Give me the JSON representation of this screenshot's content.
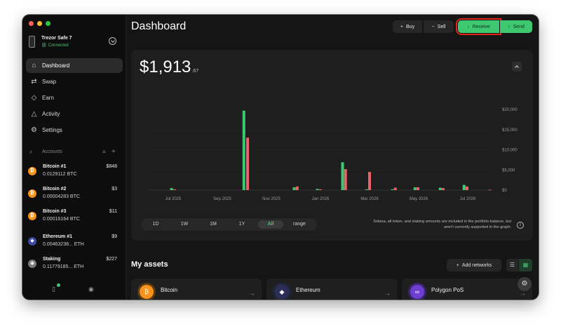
{
  "device": {
    "name": "Trezor Safe 7",
    "status": "Connected"
  },
  "nav": [
    {
      "label": "Dashboard",
      "icon": "home-icon",
      "glyph": "⌂",
      "active": true
    },
    {
      "label": "Swap",
      "icon": "swap-icon",
      "glyph": "⇄",
      "active": false
    },
    {
      "label": "Earn",
      "icon": "earn-icon",
      "glyph": "◇",
      "active": false
    },
    {
      "label": "Activity",
      "icon": "bell-icon",
      "glyph": "△",
      "active": false
    },
    {
      "label": "Settings",
      "icon": "gear-icon",
      "glyph": "⚙",
      "active": false
    }
  ],
  "accounts_header": {
    "label": "Accounts"
  },
  "accounts": [
    {
      "name": "Bitcoin #1",
      "balance": "0.0129112 BTC",
      "fiat": "$848",
      "coin": "btc",
      "glyph": "₿"
    },
    {
      "name": "Bitcoin #2",
      "balance": "0.00004283 BTC",
      "fiat": "$3",
      "coin": "btc",
      "glyph": "₿"
    },
    {
      "name": "Bitcoin #3",
      "balance": "0.00016164 BTC",
      "fiat": "$11",
      "coin": "btc",
      "glyph": "₿"
    },
    {
      "name": "Ethereum #1",
      "balance": "0.00463238... ETH",
      "fiat": "$9",
      "coin": "eth",
      "glyph": "◆"
    },
    {
      "name": "Staking",
      "balance": "0.11779185... ETH",
      "fiat": "$227",
      "coin": "stake",
      "glyph": "◉"
    }
  ],
  "header": {
    "title": "Dashboard",
    "buy": "Buy",
    "sell": "Sell",
    "receive": "Receive",
    "send": "Send"
  },
  "portfolio": {
    "balance_main": "$1,913",
    "balance_cents": ".67"
  },
  "ranges": [
    "1D",
    "1W",
    "1M",
    "1Y",
    "All",
    "range"
  ],
  "selected_range": "All",
  "chart_note": "Solana, all token, and staking amounts are included in the portfolio balance, but aren't currently supported in the graph.",
  "assets": {
    "title": "My assets",
    "add_networks": "Add networks",
    "cards": [
      {
        "name": "Bitcoin",
        "icon": "bitcoin-icon",
        "cls": "btc",
        "glyph": "₿"
      },
      {
        "name": "Ethereum",
        "icon": "ethereum-icon",
        "cls": "eth",
        "glyph": "◆"
      },
      {
        "name": "Polygon PoS",
        "icon": "polygon-icon",
        "cls": "pol",
        "glyph": "∞"
      }
    ]
  },
  "colors": {
    "accent": "#3ec971",
    "received": "#3ec971",
    "sent": "#e8646a",
    "highlight": "#e0251b"
  },
  "chart_data": {
    "type": "bar",
    "y_ticks": [
      "$20,000",
      "$15,000",
      "$10,000",
      "$5,000",
      "$0"
    ],
    "ylim": [
      0,
      20000
    ],
    "x_ticks": [
      "Jul 2025",
      "Sep 2025",
      "Nov 2025",
      "Jan 2026",
      "Mar 2026",
      "May 2026",
      "Jul 2026"
    ],
    "x_tick_pos": [
      1.0,
      3.0,
      5.0,
      7.0,
      9.0,
      11.0,
      13.0
    ],
    "series": [
      {
        "points": [
          [
            0.93,
            500
          ],
          [
            3.88,
            19700
          ],
          [
            5.93,
            700
          ],
          [
            6.87,
            300
          ],
          [
            7.9,
            6900
          ],
          [
            8.88,
            200
          ],
          [
            9.93,
            200
          ],
          [
            10.85,
            700
          ],
          [
            11.88,
            600
          ],
          [
            12.85,
            1300
          ]
        ]
      },
      {
        "points": [
          [
            1.05,
            200
          ],
          [
            4.03,
            13000
          ],
          [
            6.05,
            900
          ],
          [
            6.99,
            200
          ],
          [
            8.02,
            5200
          ],
          [
            9.0,
            4500
          ],
          [
            10.05,
            600
          ],
          [
            10.97,
            700
          ],
          [
            12.0,
            500
          ],
          [
            12.97,
            900
          ],
          [
            13.9,
            100
          ]
        ]
      }
    ],
    "grid": true
  }
}
